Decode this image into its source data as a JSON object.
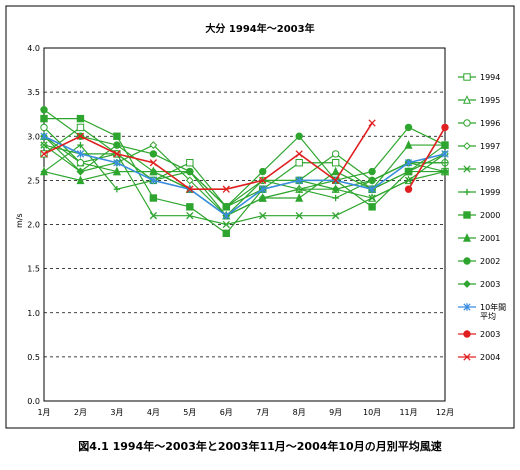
{
  "chart_data": {
    "type": "line",
    "title": "大分 1994年～2003年",
    "ylabel": "m/s",
    "xlabel": "",
    "ylim": [
      0,
      4
    ],
    "yticks": [
      "0.0",
      "0.5",
      "1.0",
      "1.5",
      "2.0",
      "2.5",
      "3.0",
      "3.5",
      "4.0"
    ],
    "categories": [
      "1月",
      "2月",
      "3月",
      "4月",
      "5月",
      "6月",
      "7月",
      "8月",
      "9月",
      "10月",
      "11月",
      "12月"
    ],
    "grid": true,
    "legend_position": "right",
    "caption": "図4.1 1994年～2003年と2003年11月～2004年10月の月別平均風速",
    "series": [
      {
        "name": "1994",
        "color": "#2ea52e",
        "marker": "square-open",
        "values": [
          2.8,
          3.1,
          2.8,
          2.5,
          2.7,
          2.2,
          2.4,
          2.7,
          2.7,
          2.4,
          2.6,
          2.6
        ]
      },
      {
        "name": "1995",
        "color": "#2ea52e",
        "marker": "triangle-open",
        "values": [
          3.0,
          2.7,
          2.6,
          2.6,
          2.4,
          2.1,
          2.3,
          2.4,
          2.4,
          2.3,
          2.5,
          2.6
        ]
      },
      {
        "name": "1996",
        "color": "#2ea52e",
        "marker": "circle-open",
        "values": [
          3.1,
          2.7,
          2.8,
          2.5,
          2.6,
          2.2,
          2.5,
          2.5,
          2.8,
          2.5,
          2.7,
          2.7
        ]
      },
      {
        "name": "1997",
        "color": "#2ea52e",
        "marker": "diamond-open",
        "values": [
          2.9,
          2.6,
          2.7,
          2.9,
          2.5,
          2.1,
          2.3,
          2.4,
          2.5,
          2.4,
          2.6,
          2.8
        ]
      },
      {
        "name": "1998",
        "color": "#2ea52e",
        "marker": "x",
        "values": [
          2.9,
          2.8,
          2.8,
          2.1,
          2.1,
          2.0,
          2.1,
          2.1,
          2.1,
          2.3,
          2.5,
          2.8
        ]
      },
      {
        "name": "1999",
        "color": "#2ea52e",
        "marker": "plus",
        "values": [
          2.6,
          2.9,
          2.4,
          2.5,
          2.4,
          2.1,
          2.5,
          2.4,
          2.3,
          2.5,
          2.7,
          2.7
        ]
      },
      {
        "name": "2000",
        "color": "#2ea52e",
        "marker": "square",
        "values": [
          3.2,
          3.2,
          3.0,
          2.3,
          2.2,
          1.9,
          2.4,
          2.5,
          2.5,
          2.2,
          2.6,
          2.9
        ]
      },
      {
        "name": "2001",
        "color": "#2ea52e",
        "marker": "triangle",
        "values": [
          2.6,
          2.5,
          2.6,
          2.6,
          2.4,
          2.1,
          2.3,
          2.3,
          2.6,
          2.4,
          2.9,
          2.9
        ]
      },
      {
        "name": "2002",
        "color": "#2ea52e",
        "marker": "circle",
        "values": [
          3.3,
          3.0,
          2.9,
          2.8,
          2.6,
          2.2,
          2.6,
          3.0,
          2.5,
          2.6,
          3.1,
          2.9
        ]
      },
      {
        "name": "2003",
        "color": "#2ea52e",
        "marker": "diamond",
        "values": [
          3.0,
          2.6,
          2.9,
          2.6,
          2.6,
          2.1,
          2.4,
          2.5,
          2.4,
          2.5,
          2.7,
          2.6
        ]
      },
      {
        "name": "10年間平均",
        "legend_lines": [
          "10年間",
          "平均"
        ],
        "color": "#3b8de0",
        "marker": "asterisk",
        "values": [
          3.0,
          2.8,
          2.7,
          2.5,
          2.4,
          2.1,
          2.4,
          2.5,
          2.5,
          2.4,
          2.7,
          2.8
        ]
      },
      {
        "name": "2003",
        "color": "#e02020",
        "marker": "circle",
        "values": [
          null,
          null,
          null,
          null,
          null,
          null,
          null,
          null,
          null,
          null,
          2.4,
          3.1
        ]
      },
      {
        "name": "2004",
        "color": "#e02020",
        "marker": "x",
        "values": [
          2.8,
          3.0,
          2.8,
          2.7,
          2.4,
          2.4,
          2.5,
          2.8,
          2.5,
          3.15,
          null,
          null
        ]
      }
    ]
  }
}
